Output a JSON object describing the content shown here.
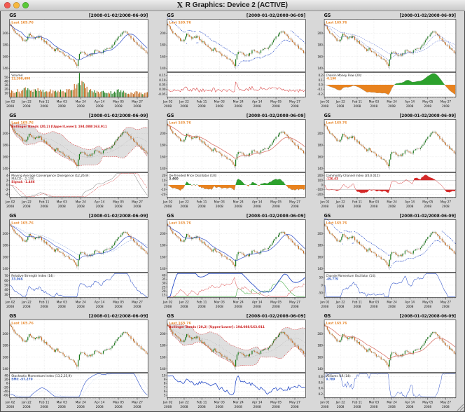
{
  "window": {
    "title": "R Graphics: Device 2 (ACTIVE)"
  },
  "header": {
    "symbol": "GS",
    "date_range": "[2008-01-02/2008-06-09]"
  },
  "annotations": {
    "last_label": "Last 165.76",
    "bollinger_label": "Bollinger Bands (20,2) [Upper/Lower]: 194.088/163.911"
  },
  "axes": {
    "x_ticks": [
      {
        "day": 0,
        "label": "Jan 02",
        "year": "2008"
      },
      {
        "day": 13,
        "label": "Jan 22",
        "year": "2008"
      },
      {
        "day": 27,
        "label": "Feb 11",
        "year": "2008"
      },
      {
        "day": 41,
        "label": "Mar 03",
        "year": "2008"
      },
      {
        "day": 56,
        "label": "Mar 24",
        "year": "2008"
      },
      {
        "day": 71,
        "label": "Apr 14",
        "year": "2008"
      },
      {
        "day": 86,
        "label": "May 05",
        "year": "2008"
      },
      {
        "day": 101,
        "label": "May 27",
        "year": "2008"
      }
    ]
  },
  "chart_data": {
    "type": "candlestick",
    "symbol": "GS",
    "period": "2008-01-02 to 2008-06-09",
    "last": 165.76,
    "n_days": 110,
    "main_yticks": [
      "200",
      "180",
      "160",
      "140"
    ],
    "close_anchors": [
      [
        0,
        215
      ],
      [
        2,
        207
      ],
      [
        4,
        201
      ],
      [
        6,
        197
      ],
      [
        8,
        194
      ],
      [
        10,
        189
      ],
      [
        12,
        186
      ],
      [
        14,
        193
      ],
      [
        15,
        200
      ],
      [
        17,
        195
      ],
      [
        19,
        190
      ],
      [
        21,
        193
      ],
      [
        23,
        195
      ],
      [
        25,
        190
      ],
      [
        27,
        186
      ],
      [
        29,
        183
      ],
      [
        31,
        179
      ],
      [
        33,
        175
      ],
      [
        35,
        171
      ],
      [
        37,
        173
      ],
      [
        39,
        169
      ],
      [
        41,
        166
      ],
      [
        43,
        163
      ],
      [
        45,
        160
      ],
      [
        47,
        158
      ],
      [
        49,
        154
      ],
      [
        51,
        151
      ],
      [
        53,
        144
      ],
      [
        54,
        157
      ],
      [
        55,
        163
      ],
      [
        56,
        169
      ],
      [
        58,
        167
      ],
      [
        60,
        164
      ],
      [
        62,
        161
      ],
      [
        64,
        163
      ],
      [
        66,
        167
      ],
      [
        68,
        171
      ],
      [
        70,
        169
      ],
      [
        72,
        166
      ],
      [
        74,
        170
      ],
      [
        76,
        174
      ],
      [
        78,
        172
      ],
      [
        80,
        177
      ],
      [
        82,
        181
      ],
      [
        84,
        187
      ],
      [
        86,
        194
      ],
      [
        88,
        198
      ],
      [
        90,
        204
      ],
      [
        92,
        201
      ],
      [
        94,
        197
      ],
      [
        96,
        192
      ],
      [
        98,
        188
      ],
      [
        100,
        184
      ],
      [
        102,
        180
      ],
      [
        104,
        175
      ],
      [
        106,
        171
      ],
      [
        108,
        168
      ],
      [
        109,
        165.76
      ]
    ],
    "volume_anchors_millions": [
      [
        0,
        13
      ],
      [
        4,
        16
      ],
      [
        8,
        14
      ],
      [
        11,
        19
      ],
      [
        13,
        26
      ],
      [
        15,
        21
      ],
      [
        18,
        15
      ],
      [
        22,
        17
      ],
      [
        27,
        13
      ],
      [
        31,
        15
      ],
      [
        35,
        13
      ],
      [
        39,
        16
      ],
      [
        43,
        14
      ],
      [
        47,
        18
      ],
      [
        50,
        24
      ],
      [
        52,
        32
      ],
      [
        54,
        42
      ],
      [
        55,
        58
      ],
      [
        56,
        46
      ],
      [
        57,
        36
      ],
      [
        59,
        26
      ],
      [
        62,
        18
      ],
      [
        65,
        15
      ],
      [
        68,
        13
      ],
      [
        71,
        12
      ],
      [
        75,
        14
      ],
      [
        78,
        11
      ],
      [
        82,
        13
      ],
      [
        86,
        16
      ],
      [
        89,
        13
      ],
      [
        93,
        11
      ],
      [
        97,
        10
      ],
      [
        101,
        13
      ],
      [
        104,
        9
      ],
      [
        107,
        10
      ],
      [
        109,
        12.4
      ]
    ]
  },
  "colors": {
    "up_candle": "#1a7a1a",
    "down_candle": "#c46a1e",
    "wick": "#666666",
    "ma_blue": "#3350c8",
    "salmon": "#d9756b",
    "band_edge_red": "#d42a2a",
    "grid": "#c4c4c4",
    "orange_text": "#e8872a",
    "red_text": "#cc2222",
    "blue_text": "#3a62c4",
    "gray_text": "#8a8a8a",
    "dark_text": "#333333",
    "pos_green": "#2ca12c",
    "neg_orange": "#e8821e",
    "line_red": "#d42a2a",
    "line_green": "#2ca12c",
    "line_blue": "#2b4fc8",
    "smi_signal": "#9db7e8"
  },
  "panels": [
    {
      "id": "volume",
      "overlay": "sma",
      "show_bollinger_label": false,
      "indicator": {
        "type": "volume",
        "label": "Volume:",
        "value_text": "12,398,400",
        "value_color": "orange_text",
        "yticks": [
          "50",
          "40",
          "30",
          "20",
          "10"
        ]
      }
    },
    {
      "id": "roc",
      "overlay": "sar",
      "show_bollinger_label": false,
      "indicator": {
        "type": "roc",
        "label": "",
        "value_text": "",
        "value_color": "dark_text",
        "yticks": [
          "0.15",
          "0.10",
          "0.05",
          "0.00",
          "-0.05"
        ]
      }
    },
    {
      "id": "chaikin-money-flow",
      "overlay": "ema-pair-dashed",
      "show_bollinger_label": false,
      "indicator": {
        "type": "cmf",
        "label": "Chaikin Money Flow (20):",
        "value_text": "-0.190",
        "value_color": "orange_text",
        "yticks": [
          "0.2",
          "0.1",
          "0.0",
          "-0.1",
          "-0.2"
        ]
      }
    },
    {
      "id": "macd",
      "overlay": "bollinger",
      "show_bollinger_label": true,
      "indicator": {
        "type": "macd",
        "label": "Moving Average Convergence Divergence (12,26,9):",
        "value_lines": [
          {
            "text": "MACD: -2.156",
            "color": "gray_text"
          },
          {
            "text": "Signal: -1.466",
            "color": "red_text"
          }
        ],
        "yticks": [
          "4",
          "2",
          "0",
          "-2",
          "-4"
        ]
      }
    },
    {
      "id": "dpo",
      "overlay": "ema-salmon",
      "show_bollinger_label": false,
      "indicator": {
        "type": "dpo",
        "label": "De-Trended Price Oscillator (10):",
        "value_text": "3.460",
        "value_color": "dark_text",
        "yticks": [
          "20",
          "10",
          "0",
          "-10",
          "-20"
        ]
      }
    },
    {
      "id": "cci",
      "overlay": "none",
      "show_bollinger_label": false,
      "indicator": {
        "type": "cci",
        "label": "Commodity Channel Index (20,0.015):",
        "value_text": "-126.43",
        "value_color": "red_text",
        "yticks": [
          "200",
          "100",
          "0",
          "-100",
          "-200"
        ]
      }
    },
    {
      "id": "rsi",
      "overlay": "ema-pair",
      "show_bollinger_label": false,
      "indicator": {
        "type": "rsi",
        "label": "Relative Strength Index (14):",
        "value_text": "33.946",
        "value_color": "blue_text",
        "yticks": [
          "70",
          "60",
          "50",
          "40",
          "30"
        ]
      }
    },
    {
      "id": "adx",
      "overlay": "sma",
      "show_bollinger_label": false,
      "indicator": {
        "type": "adx",
        "label": "",
        "value_text": "",
        "value_color": "dark_text",
        "yticks": [
          "40",
          "35",
          "30",
          "25",
          "20",
          "15"
        ]
      }
    },
    {
      "id": "cmo",
      "overlay": "sar",
      "show_bollinger_label": false,
      "indicator": {
        "type": "cmo",
        "label": "Chande Momentum Oscillator (14):",
        "value_text": "-49.779",
        "value_color": "blue_text",
        "yticks": [
          "50",
          "0",
          "-50"
        ]
      }
    },
    {
      "id": "smi",
      "overlay": "none",
      "show_bollinger_label": false,
      "indicator": {
        "type": "smi",
        "label": "Stochastic Momentum Index (13,2,25,9):",
        "value_text": "SMI: -57.270",
        "value_color": "blue_text",
        "yticks": [
          "40",
          "20",
          "0",
          "-20",
          "-40",
          "-60"
        ]
      }
    },
    {
      "id": "atr",
      "overlay": "bollinger",
      "show_bollinger_label": true,
      "indicator": {
        "type": "atr",
        "label": "",
        "value_text": "",
        "value_color": "dark_text",
        "yticks": [
          "10",
          "9",
          "8",
          "7",
          "6",
          "5"
        ]
      }
    },
    {
      "id": "williams-r",
      "overlay": "ema-salmon",
      "show_bollinger_label": false,
      "indicator": {
        "type": "wpr",
        "label": "Williams %R (14):",
        "value_text": "0.789",
        "value_color": "blue_text",
        "yticks": [
          "0.8",
          "0.6",
          "0.4",
          "0.2"
        ]
      }
    }
  ]
}
